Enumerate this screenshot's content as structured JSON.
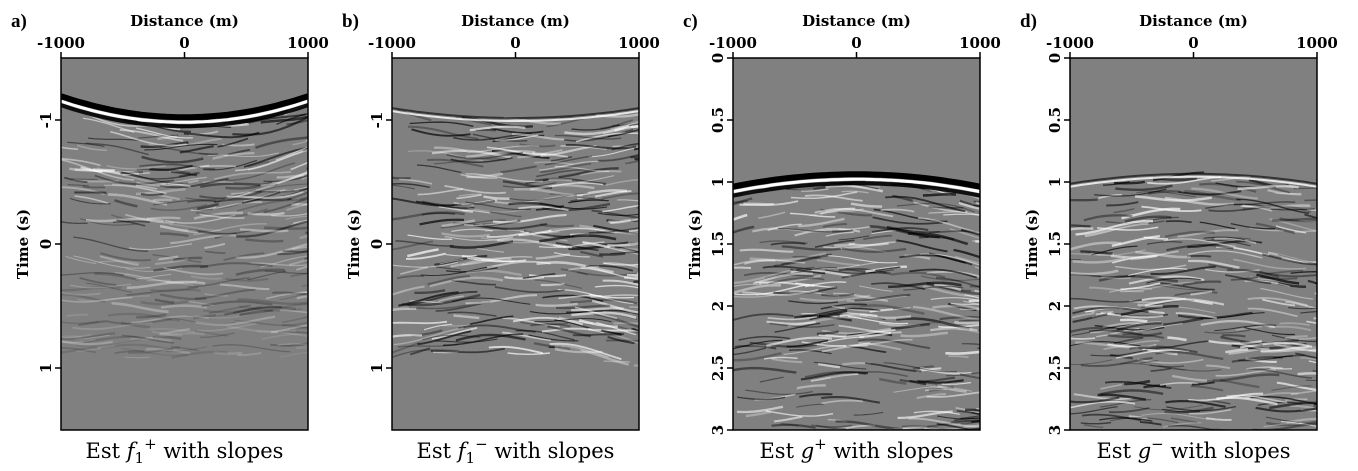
{
  "chart_data": [
    {
      "type": "image",
      "panel": "a)",
      "xlabel": "Distance (m)",
      "ylabel": "Time (s)",
      "xlim": [
        -1000,
        1000
      ],
      "xticks": [
        -1000,
        0,
        1000
      ],
      "ylim": [
        -1.5,
        1.5
      ],
      "yticks": [
        -1,
        0,
        1
      ],
      "caption": {
        "prefix": "Est ",
        "symbol": "f",
        "subscript": "1",
        "superscript": "+",
        "suffix": " with slopes"
      }
    },
    {
      "type": "image",
      "panel": "b)",
      "xlabel": "Distance (m)",
      "ylabel": "Time (s)",
      "xlim": [
        -1000,
        1000
      ],
      "xticks": [
        -1000,
        0,
        1000
      ],
      "ylim": [
        -1.5,
        1.5
      ],
      "yticks": [
        -1,
        0,
        1
      ],
      "caption": {
        "prefix": "Est ",
        "symbol": "f",
        "subscript": "1",
        "superscript": "−",
        "suffix": " with slopes"
      }
    },
    {
      "type": "image",
      "panel": "c)",
      "xlabel": "Distance (m)",
      "ylabel": "Time (s)",
      "xlim": [
        -1000,
        1000
      ],
      "xticks": [
        -1000,
        0,
        1000
      ],
      "ylim": [
        0,
        3
      ],
      "yticks": [
        0,
        0.5,
        1,
        1.5,
        2,
        2.5,
        3
      ],
      "caption": {
        "prefix": "Est ",
        "symbol": "g",
        "superscript": "+",
        "suffix": " with slopes"
      }
    },
    {
      "type": "image",
      "panel": "d)",
      "xlabel": "Distance (m)",
      "ylabel": "Time (s)",
      "xlim": [
        -1000,
        1000
      ],
      "xticks": [
        -1000,
        0,
        1000
      ],
      "ylim": [
        0,
        3
      ],
      "yticks": [
        0,
        0.5,
        1,
        1.5,
        2,
        2.5,
        3
      ],
      "caption": {
        "prefix": "Est ",
        "symbol": "g",
        "superscript": "−",
        "suffix": " with slopes"
      }
    }
  ]
}
